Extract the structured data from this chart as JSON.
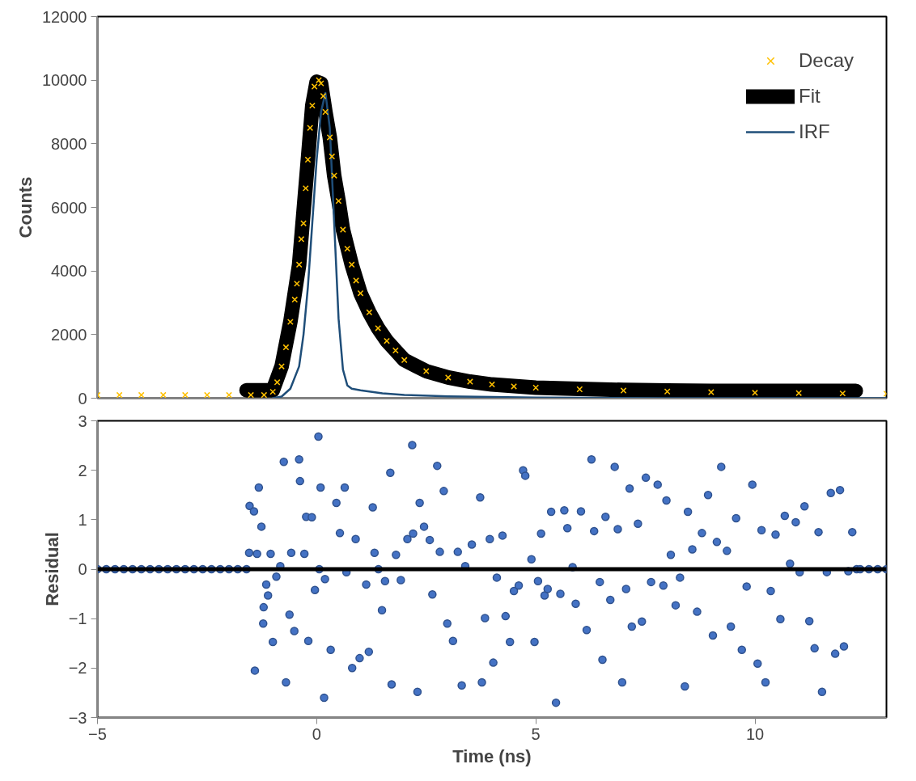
{
  "chart_data": [
    {
      "type": "line",
      "ylabel": "Counts",
      "xlim": [
        -5,
        13
      ],
      "ylim": [
        0,
        12000
      ],
      "xticks": [
        -5,
        0,
        5,
        10
      ],
      "yticks": [
        0,
        2000,
        4000,
        6000,
        8000,
        10000,
        12000
      ],
      "tick_labels": "y",
      "grid": false,
      "legend": "top right",
      "series": [
        {
          "name": "Decay",
          "type": "scatter",
          "marker": "cross",
          "color": "#ffc000",
          "x": [
            -5,
            -4.5,
            -4,
            -3.5,
            -3,
            -2.5,
            -2,
            -1.5,
            -1.2,
            -1.0,
            -0.9,
            -0.8,
            -0.7,
            -0.6,
            -0.5,
            -0.45,
            -0.4,
            -0.35,
            -0.3,
            -0.25,
            -0.2,
            -0.15,
            -0.1,
            -0.05,
            0.05,
            0.1,
            0.15,
            0.2,
            0.3,
            0.35,
            0.4,
            0.5,
            0.6,
            0.7,
            0.8,
            0.9,
            1.0,
            1.2,
            1.4,
            1.6,
            1.8,
            2.0,
            2.5,
            3,
            3.5,
            4,
            4.5,
            5,
            6,
            7,
            8,
            9,
            10,
            11,
            12,
            13
          ],
          "values": [
            100,
            100,
            100,
            100,
            100,
            100,
            100,
            100,
            100,
            200,
            500,
            1000,
            1600,
            2400,
            3100,
            3600,
            4200,
            5000,
            5500,
            6600,
            7500,
            8500,
            9200,
            9800,
            10000,
            9900,
            9500,
            9000,
            8200,
            7600,
            7000,
            6200,
            5300,
            4700,
            4200,
            3700,
            3300,
            2700,
            2200,
            1800,
            1500,
            1200,
            850,
            650,
            520,
            430,
            370,
            330,
            280,
            240,
            210,
            190,
            170,
            160,
            150,
            140
          ]
        },
        {
          "name": "Fit",
          "type": "line",
          "color": "#000000",
          "x": [
            -1.6,
            -1.0,
            -0.8,
            -0.6,
            -0.4,
            -0.2,
            -0.1,
            0.0,
            0.1,
            0.2,
            0.3,
            0.4,
            0.5,
            0.6,
            0.8,
            1.0,
            1.2,
            1.4,
            1.6,
            1.8,
            2.0,
            2.5,
            3,
            3.5,
            4,
            5,
            6,
            7,
            8,
            9,
            10,
            11,
            12.3
          ],
          "values": [
            250,
            250,
            1000,
            2400,
            4200,
            7500,
            9200,
            9950,
            9900,
            9000,
            8200,
            7000,
            6200,
            5300,
            4200,
            3300,
            2700,
            2200,
            1800,
            1500,
            1200,
            850,
            650,
            520,
            430,
            330,
            290,
            260,
            240,
            230,
            230,
            230,
            230
          ]
        },
        {
          "name": "IRF",
          "type": "line",
          "color": "#1f4e79",
          "x": [
            -1.0,
            -0.8,
            -0.6,
            -0.4,
            -0.3,
            -0.2,
            -0.1,
            0.0,
            0.1,
            0.2,
            0.3,
            0.4,
            0.5,
            0.6,
            0.7,
            0.8,
            1.0,
            1.5,
            2,
            3,
            4,
            5,
            6,
            8,
            10,
            13
          ],
          "values": [
            0,
            50,
            300,
            1000,
            2000,
            3500,
            5500,
            7500,
            9000,
            9600,
            8500,
            5500,
            2500,
            900,
            400,
            300,
            250,
            150,
            100,
            60,
            40,
            20,
            10,
            0,
            0,
            0
          ]
        }
      ]
    },
    {
      "type": "scatter",
      "xlabel": "Time (ns)",
      "ylabel": "Residual",
      "xlim": [
        -5,
        13
      ],
      "ylim": [
        -3,
        3
      ],
      "xticks": [
        -5,
        0,
        5,
        10
      ],
      "yticks": [
        -3,
        -2,
        -1,
        0,
        1,
        2,
        3
      ],
      "grid": false,
      "marker": "circle",
      "ref_lines": [
        {
          "axis": "y",
          "value": 0,
          "color": "#000000"
        }
      ],
      "series": [
        {
          "color": "#4472c4",
          "x": [
            -5,
            -4.8,
            -4.6,
            -4.4,
            -4.2,
            -4.0,
            -3.8,
            -3.6,
            -3.4,
            -3.2,
            -3.0,
            -2.8,
            -2.6,
            -2.4,
            -2.2,
            -2.0,
            -1.8,
            -1.6,
            -1.54,
            -1.53,
            -1.43,
            -1.41,
            -1.36,
            -1.32,
            -1.26,
            -1.21,
            -1.22,
            -1.15,
            -1.11,
            -1.05,
            -1.0,
            -0.92,
            -0.83,
            -0.75,
            -0.7,
            -0.62,
            -0.58,
            -0.51,
            -0.4,
            -0.38,
            -0.28,
            -0.24,
            -0.19,
            -0.11,
            -0.04,
            0.04,
            0.06,
            0.09,
            0.19,
            0.17,
            0.32,
            0.45,
            0.53,
            0.64,
            0.68,
            0.81,
            0.89,
            0.98,
            1.13,
            1.19,
            1.28,
            1.32,
            1.41,
            1.49,
            1.56,
            1.68,
            1.71,
            1.81,
            1.92,
            2.07,
            2.18,
            2.2,
            2.35,
            2.3,
            2.45,
            2.58,
            2.64,
            2.75,
            2.81,
            2.9,
            2.98,
            3.11,
            3.22,
            3.31,
            3.39,
            3.54,
            3.73,
            3.77,
            3.84,
            3.95,
            4.03,
            4.11,
            4.24,
            4.31,
            4.41,
            4.5,
            4.61,
            4.71,
            4.76,
            4.9,
            4.97,
            5.05,
            5.12,
            5.2,
            5.27,
            5.35,
            5.46,
            5.56,
            5.65,
            5.72,
            5.84,
            5.91,
            6.03,
            6.16,
            6.27,
            6.33,
            6.46,
            6.52,
            6.59,
            6.7,
            6.8,
            6.87,
            6.97,
            7.06,
            7.14,
            7.19,
            7.33,
            7.42,
            7.51,
            7.63,
            7.78,
            7.91,
            7.98,
            8.08,
            8.19,
            8.29,
            8.4,
            8.47,
            8.57,
            8.68,
            8.79,
            8.93,
            9.04,
            9.13,
            9.23,
            9.36,
            9.45,
            9.57,
            9.7,
            9.81,
            9.94,
            10.06,
            10.15,
            10.24,
            10.36,
            10.47,
            10.58,
            10.68,
            10.8,
            10.93,
            11.02,
            11.13,
            11.24,
            11.36,
            11.45,
            11.53,
            11.64,
            11.73,
            11.83,
            11.94,
            12.03,
            12.13,
            12.22,
            12.32,
            12.4,
            12.6,
            12.8,
            13.0
          ],
          "values": [
            0,
            0,
            0,
            0,
            0,
            0,
            0,
            0,
            0,
            0,
            0,
            0,
            0,
            0,
            0,
            0,
            0,
            0,
            0.33,
            1.28,
            1.17,
            -2.05,
            0.31,
            1.65,
            0.86,
            -0.77,
            -1.1,
            -0.31,
            -0.53,
            0.31,
            -1.47,
            -0.15,
            0.06,
            2.17,
            -2.29,
            -0.92,
            0.33,
            -1.25,
            2.22,
            1.78,
            0.31,
            1.06,
            -1.45,
            1.05,
            -0.42,
            2.68,
            0,
            1.65,
            -0.2,
            -2.6,
            -1.63,
            1.34,
            0.73,
            1.65,
            -0.06,
            -2.0,
            0.61,
            -1.8,
            -0.31,
            -1.67,
            1.25,
            0.33,
            0,
            -0.83,
            -0.24,
            1.95,
            -2.33,
            0.29,
            -0.22,
            0.61,
            2.51,
            0.72,
            1.34,
            -2.48,
            0.86,
            0.59,
            -0.51,
            2.09,
            0.35,
            1.58,
            -1.1,
            -1.45,
            0.35,
            -2.35,
            0.06,
            0.5,
            1.45,
            -2.29,
            -0.99,
            0.61,
            -1.89,
            -0.17,
            0.68,
            -0.95,
            -1.47,
            -0.44,
            -0.33,
            2.0,
            1.89,
            0.2,
            -1.47,
            -0.24,
            0.72,
            -0.53,
            -0.4,
            1.16,
            -2.7,
            -0.5,
            1.19,
            0.83,
            0.04,
            -0.7,
            1.17,
            -1.23,
            2.22,
            0.77,
            -0.26,
            -1.83,
            1.06,
            -0.62,
            2.07,
            0.81,
            -2.29,
            -0.4,
            1.63,
            -1.16,
            0.92,
            -1.06,
            1.85,
            -0.26,
            1.71,
            -0.33,
            1.39,
            0.29,
            -0.73,
            -0.17,
            -2.37,
            1.16,
            0.4,
            -0.86,
            0.73,
            1.5,
            -1.34,
            0.55,
            2.07,
            0.37,
            -1.16,
            1.03,
            -1.63,
            -0.35,
            1.71,
            -1.91,
            0.79,
            -2.29,
            -0.44,
            0.7,
            -1.01,
            1.08,
            0.11,
            0.95,
            -0.06,
            1.27,
            -1.05,
            -1.6,
            0.75,
            -2.48,
            -0.06,
            1.54,
            -1.71,
            1.6,
            -1.56,
            -0.04,
            0.75,
            0,
            0,
            0,
            0,
            0
          ]
        }
      ]
    }
  ]
}
